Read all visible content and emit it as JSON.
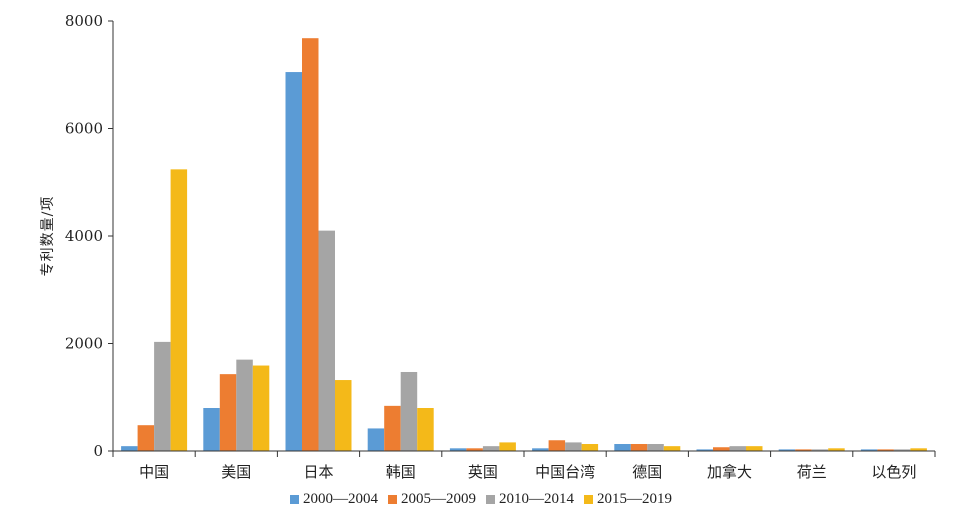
{
  "chart_data": {
    "type": "bar",
    "title": "",
    "xlabel": "",
    "ylabel": "专利数量/项",
    "ylim": [
      0,
      8000
    ],
    "yticks": [
      "0",
      "2000",
      "4000",
      "6000",
      "8000"
    ],
    "categories": [
      "中国",
      "美国",
      "日本",
      "韩国",
      "英国",
      "中国台湾",
      "德国",
      "加拿大",
      "荷兰",
      "以色列"
    ],
    "series": [
      {
        "name": "2000—2004",
        "color": "#5b9bd5",
        "values": [
          90,
          800,
          7050,
          420,
          50,
          50,
          130,
          30,
          30,
          30
        ]
      },
      {
        "name": "2005—2009",
        "color": "#ed7d31",
        "values": [
          480,
          1430,
          7680,
          840,
          50,
          200,
          130,
          70,
          30,
          30
        ]
      },
      {
        "name": "2010—2014",
        "color": "#a5a5a5",
        "values": [
          2030,
          1700,
          4100,
          1470,
          90,
          160,
          130,
          90,
          30,
          30
        ]
      },
      {
        "name": "2015—2019",
        "color": "#f4b919",
        "values": [
          5240,
          1590,
          1320,
          800,
          160,
          130,
          90,
          90,
          50,
          50
        ]
      }
    ],
    "grid": false,
    "legend_position": "bottom"
  }
}
